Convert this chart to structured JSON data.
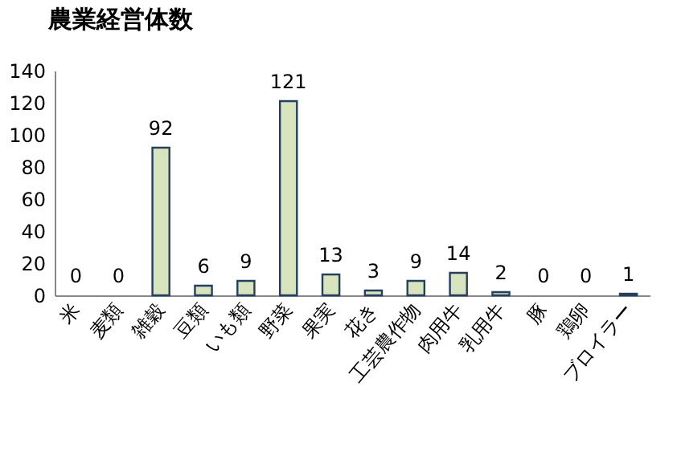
{
  "chart_data": {
    "type": "bar",
    "title": "農業経営体数",
    "categories": [
      "米",
      "麦類",
      "雑穀",
      "豆類",
      "いも類",
      "野菜",
      "果実",
      "花き",
      "工芸農作物",
      "肉用牛",
      "乳用牛",
      "豚",
      "鶏卵",
      "ブロイラー"
    ],
    "values": [
      0,
      0,
      92,
      6,
      9,
      121,
      13,
      3,
      9,
      14,
      2,
      0,
      0,
      1
    ],
    "color": "#d7e4bd",
    "ylim": [
      0,
      140
    ],
    "yticks": [
      0,
      20,
      40,
      60,
      80,
      100,
      120,
      140
    ],
    "grid": false,
    "data_labels": true
  }
}
